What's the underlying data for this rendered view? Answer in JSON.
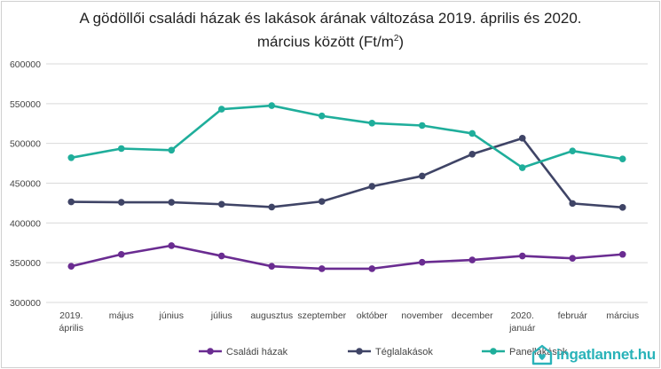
{
  "chart_data": {
    "type": "line",
    "title_line1": "A gödöllői családi házak és lakások árának változása 2019. április és 2020.",
    "title_line2_main": "március között (Ft/m",
    "title_line2_sup": "2",
    "title_line2_end": ")",
    "categories": [
      [
        "2019.",
        "április"
      ],
      [
        "május"
      ],
      [
        "június"
      ],
      [
        "július"
      ],
      [
        "augusztus"
      ],
      [
        "szeptember"
      ],
      [
        "október"
      ],
      [
        "november"
      ],
      [
        "december"
      ],
      [
        "2020.",
        "január"
      ],
      [
        "február"
      ],
      [
        "március"
      ]
    ],
    "y_ticks": [
      "300000",
      "350000",
      "400000",
      "450000",
      "500000",
      "550000",
      "600000"
    ],
    "ylim": [
      300000,
      600000
    ],
    "grid": true,
    "legend_position": "bottom",
    "series": [
      {
        "name": "Családi házak",
        "color": "#6a2c91",
        "values": [
          345500,
          360500,
          371500,
          358500,
          345500,
          342500,
          342500,
          350500,
          353500,
          358500,
          355500,
          360500
        ]
      },
      {
        "name": "Téglalakások",
        "color": "#3f4466",
        "values": [
          426500,
          426000,
          426000,
          423500,
          420000,
          427000,
          446000,
          459000,
          486500,
          506500,
          424500,
          419500
        ]
      },
      {
        "name": "Panellakások",
        "color": "#1fae9b",
        "values": [
          482000,
          493500,
          491500,
          543000,
          547500,
          534500,
          525500,
          522500,
          512500,
          469500,
          490500,
          480500
        ]
      }
    ]
  },
  "brand": {
    "text": "ingatlannet.hu",
    "icon": "house-heart-icon",
    "color": "#2ab3b9"
  }
}
